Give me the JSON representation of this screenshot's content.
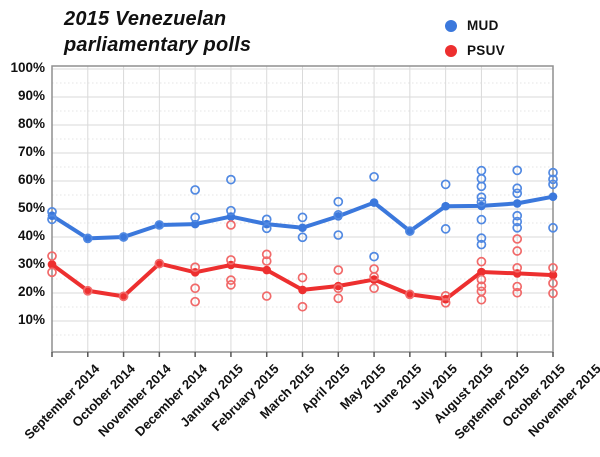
{
  "ui": {
    "title_line1": "2015 Venezuelan",
    "title_line2": "parliamentary polls"
  },
  "chart_data": {
    "type": "line",
    "title": "2015 Venezuelan parliamentary polls",
    "ylim": [
      0,
      100
    ],
    "y_tick_labels": [
      "100%",
      "90%",
      "80%",
      "70%",
      "60%",
      "50%",
      "40%",
      "30%",
      "20%",
      "10%"
    ],
    "categories": [
      "September 2014",
      "October 2014",
      "November 2014",
      "December 2014",
      "January 2015",
      "February 2015",
      "March 2015",
      "April 2015",
      "May 2015",
      "June 2015",
      "July 2015",
      "August 2015",
      "September 2015",
      "October 2015",
      "November 2015"
    ],
    "grid": {
      "major_step_pct": 10,
      "minor_step_pct": 5,
      "vertical_per_month": true
    },
    "legend_position": "top-right",
    "x_label_rotation_deg": 45,
    "style": {
      "major_grid": "#dadada",
      "minor_grid": "#e4e4e4",
      "vertical_grid": "#dadada",
      "border": "#8f8f8f",
      "tick": "#555555",
      "background": "#ffffff"
    },
    "series": [
      {
        "name": "MUD",
        "color": "#3b78dc",
        "scatter_color": "#5189e2",
        "averages": [
          47.6,
          39.5,
          40.0,
          44.3,
          44.6,
          47.3,
          44.6,
          43.3,
          47.4,
          52.3,
          42.1,
          51.0,
          51.1,
          52.0,
          54.4
        ],
        "polls": [
          [
            49.0,
            46.3
          ],
          [
            39.5
          ],
          [
            40.0
          ],
          [
            44.3
          ],
          [
            56.8,
            47.0
          ],
          [
            60.5,
            49.4
          ],
          [
            46.3,
            43.1
          ],
          [
            47.0,
            39.9
          ],
          [
            52.6,
            47.9,
            40.7
          ],
          [
            61.5,
            33.0
          ],
          [
            42.1
          ],
          [
            58.8,
            42.9
          ],
          [
            63.7,
            60.8,
            58.1,
            54.2,
            52.5,
            46.2,
            39.6,
            37.3
          ],
          [
            63.8,
            57.4,
            55.6,
            47.6,
            45.5,
            43.3
          ],
          [
            63.0,
            60.6,
            58.8,
            43.3
          ]
        ]
      },
      {
        "name": "PSUV",
        "color": "#ed2f2f",
        "scatter_color": "#f16a6a",
        "averages": [
          30.2,
          20.8,
          18.8,
          30.5,
          27.4,
          30.0,
          28.2,
          21.1,
          22.5,
          24.8,
          19.5,
          17.8,
          27.5,
          27.0,
          26.4
        ],
        "polls": [
          [
            33.2,
            27.4
          ],
          [
            20.8
          ],
          [
            18.8
          ],
          [
            30.5
          ],
          [
            29.2,
            21.7,
            16.9
          ],
          [
            44.3,
            31.8,
            24.6,
            22.9
          ],
          [
            33.8,
            31.4,
            18.9
          ],
          [
            25.5,
            15.1
          ],
          [
            28.2,
            21.7,
            18.1
          ],
          [
            28.6,
            25.8,
            21.7
          ],
          [
            19.5
          ],
          [
            19.0,
            16.5
          ],
          [
            31.2,
            24.8,
            22.4,
            20.6,
            17.6
          ],
          [
            39.3,
            35.0,
            29.0,
            22.3,
            20.1
          ],
          [
            29.0,
            23.5,
            19.9
          ]
        ]
      }
    ]
  }
}
